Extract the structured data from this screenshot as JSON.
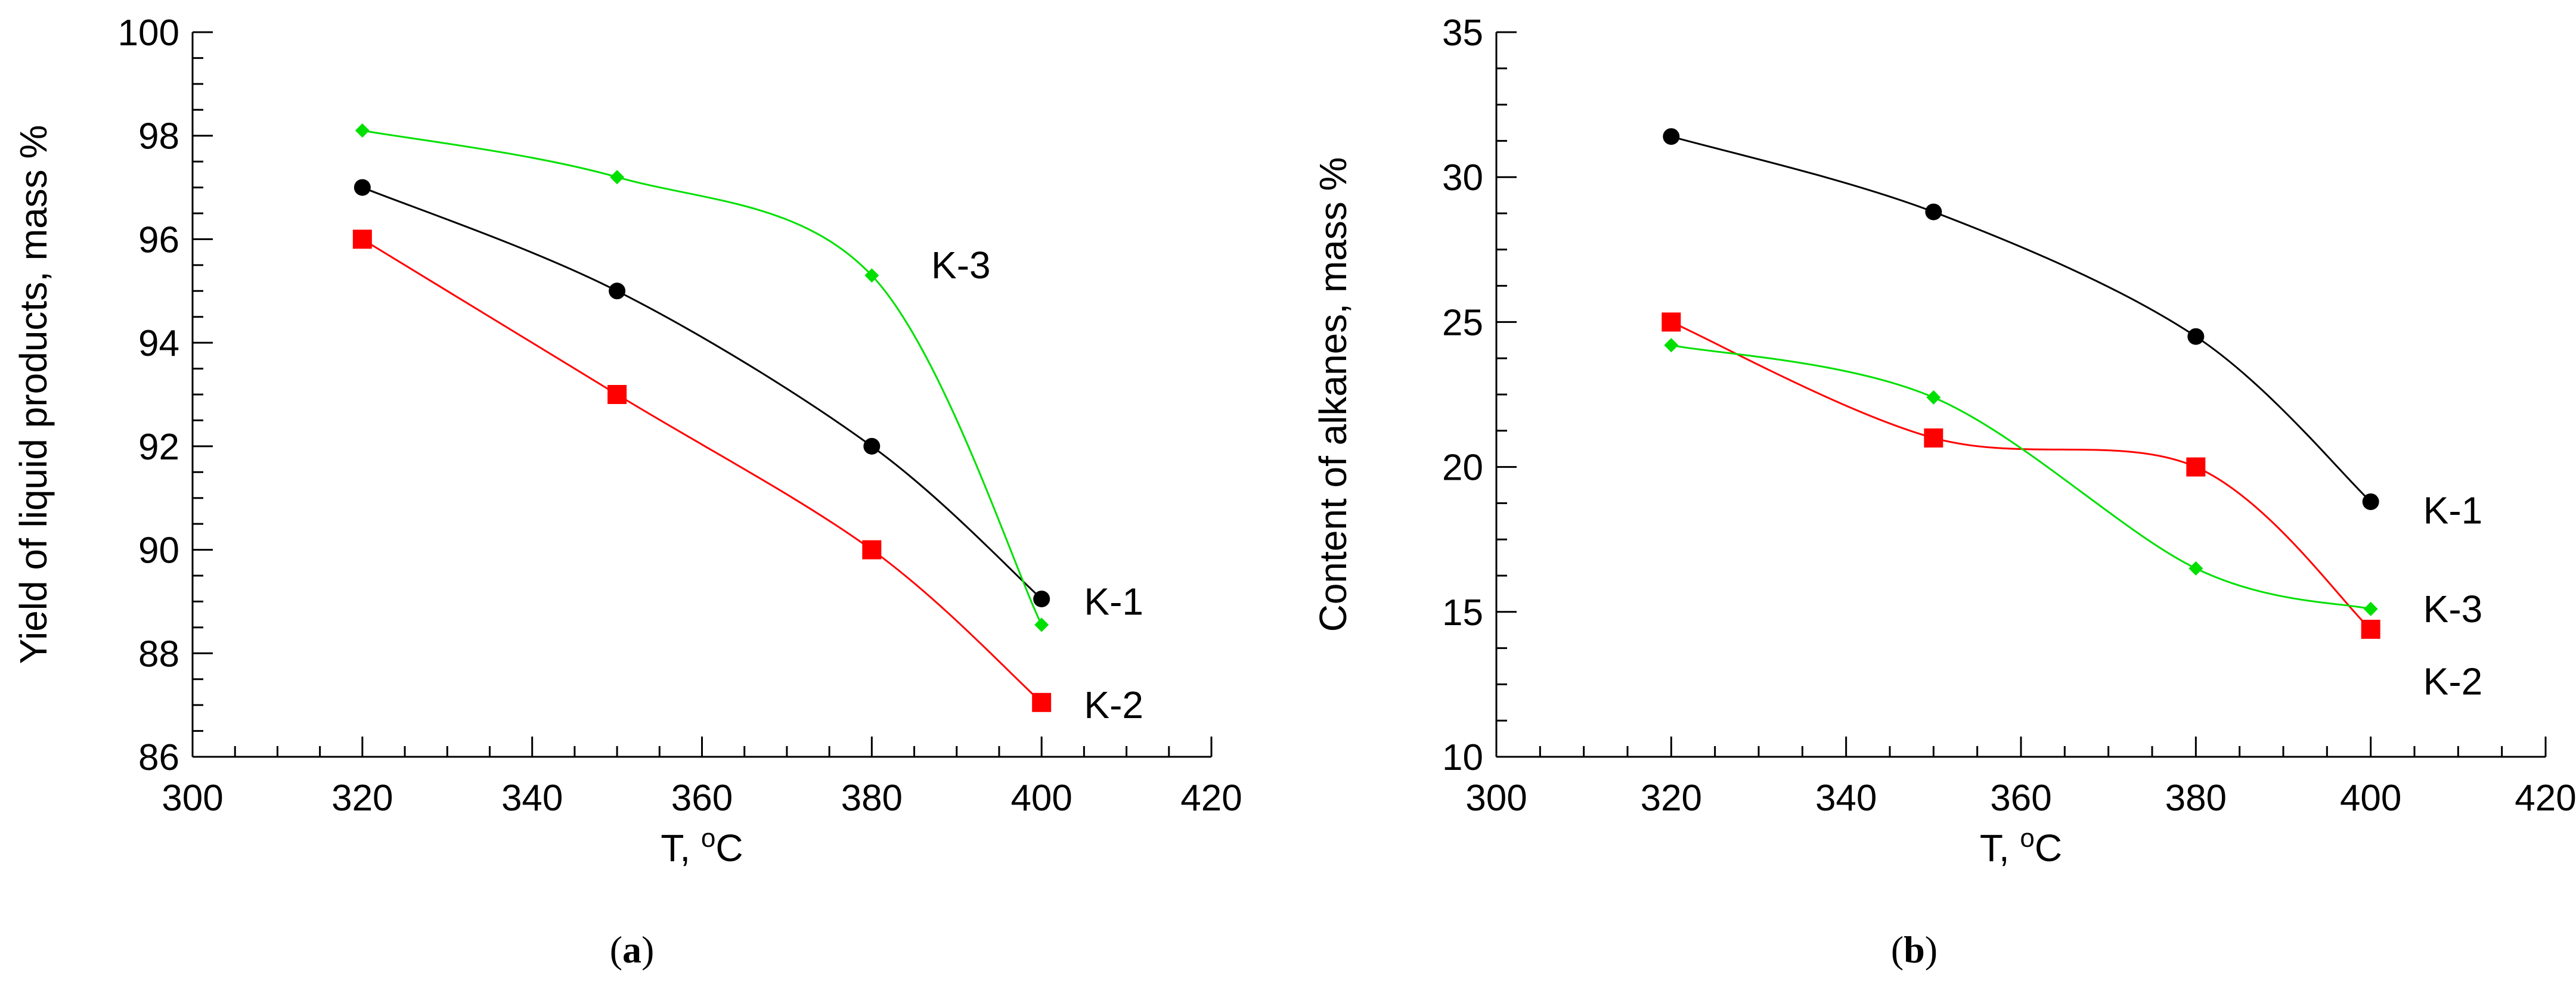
{
  "chart_data": [
    {
      "type": "line",
      "panel": "a",
      "caption": {
        "open": "(",
        "letter": "a",
        "close": ")"
      },
      "xlabel": {
        "text": "T, ",
        "sup": "o",
        "unit": "C"
      },
      "ylabel": "Yield of liquid products, mass %",
      "xlim": [
        300,
        420
      ],
      "ylim": [
        86,
        100
      ],
      "xticks": [
        300,
        320,
        340,
        360,
        380,
        400,
        420
      ],
      "yticks": [
        86,
        88,
        90,
        92,
        94,
        96,
        98,
        100
      ],
      "x": [
        320,
        350,
        380,
        400
      ],
      "series": [
        {
          "name": "K-1",
          "values": [
            97.0,
            95.0,
            92.0,
            89.05
          ],
          "color": "#000000",
          "marker": "circle",
          "label_at": [
            405,
            89.0
          ]
        },
        {
          "name": "K-2",
          "values": [
            96.0,
            93.0,
            90.0,
            87.05
          ],
          "color": "#ff0000",
          "marker": "square",
          "label_at": [
            405,
            87.0
          ]
        },
        {
          "name": "K-3",
          "values": [
            98.1,
            97.2,
            95.3,
            88.55
          ],
          "color": "#00e000",
          "marker": "diamond",
          "label_at": [
            387,
            95.5
          ]
        }
      ]
    },
    {
      "type": "line",
      "panel": "b",
      "caption": {
        "open": "(",
        "letter": "b",
        "close": ")"
      },
      "xlabel": {
        "text": "T, ",
        "sup": "o",
        "unit": "C"
      },
      "ylabel": "Content of alkanes, mass %",
      "xlim": [
        300,
        420
      ],
      "ylim": [
        10,
        35
      ],
      "xticks": [
        300,
        320,
        340,
        360,
        380,
        400,
        420
      ],
      "yticks": [
        10,
        15,
        20,
        25,
        30,
        35
      ],
      "x": [
        320,
        350,
        380,
        400
      ],
      "series": [
        {
          "name": "K-1",
          "values": [
            31.4,
            28.8,
            24.5,
            18.8
          ],
          "color": "#000000",
          "marker": "circle",
          "label_at": [
            406,
            18.5
          ]
        },
        {
          "name": "K-2",
          "values": [
            25.0,
            21.0,
            20.0,
            14.4
          ],
          "color": "#ff0000",
          "marker": "square",
          "label_at": [
            406,
            12.6
          ]
        },
        {
          "name": "K-3",
          "values": [
            24.2,
            22.4,
            16.5,
            15.1
          ],
          "color": "#00e000",
          "marker": "diamond",
          "label_at": [
            406,
            15.1
          ]
        }
      ]
    }
  ]
}
